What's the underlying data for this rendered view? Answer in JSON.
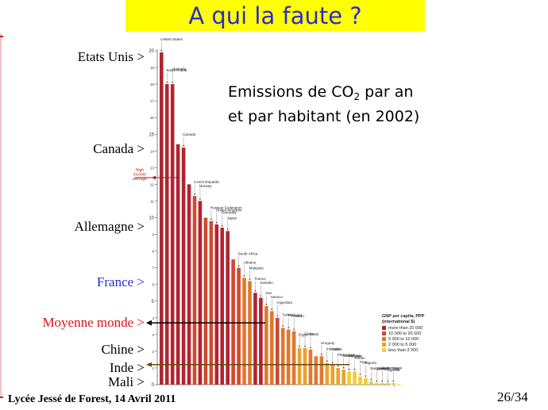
{
  "slide": {
    "title": "A qui la faute ?",
    "caption_line1_pre": "Emissions de CO",
    "caption_line1_sub": "2",
    "caption_line1_post": " par an",
    "caption_line2": "et par habitant (en 2002)",
    "footer": "Lycée Jessé de Forest, 14 Avril 2011",
    "page": "26/34"
  },
  "labels": [
    {
      "text": "Etats Unis >",
      "color": "#000000"
    },
    {
      "text": "Canada >",
      "color": "#000000"
    },
    {
      "text": "Allemagne >",
      "color": "#000000"
    },
    {
      "text": "France >",
      "color": "#2a2ad0"
    },
    {
      "text": "Moyenne monde >",
      "color": "#e01010"
    },
    {
      "text": "Chine >",
      "color": "#000000"
    },
    {
      "text": "Inde >",
      "color": "#000000"
    },
    {
      "text": "Mali >",
      "color": "#000000"
    }
  ],
  "chart_data": {
    "type": "bar",
    "title": "",
    "xlabel": "",
    "ylabel": "",
    "ylim": [
      0,
      20
    ],
    "yticks": [
      0,
      1,
      2,
      3,
      4,
      5,
      6,
      7,
      8,
      9,
      10,
      11,
      12,
      13,
      14,
      15,
      16,
      17,
      18,
      19,
      20
    ],
    "grid": false,
    "legend": {
      "title_line1": "GNP per capita, PPP",
      "title_line2": "(international $)",
      "placement": "bottom-right",
      "entries": [
        {
          "label": "more than 20 000",
          "color": "#b02530"
        },
        {
          "label": "10 000 to 20 000",
          "color": "#d04a2e"
        },
        {
          "label": "5 000 to 10 000",
          "color": "#e0782c"
        },
        {
          "label": "2 000 to 5 000",
          "color": "#eca12e"
        },
        {
          "label": "less than 2 000",
          "color": "#f4cc30"
        }
      ]
    },
    "reference_line": {
      "label_line1": "High",
      "label_line2": "income",
      "label_line3": "average",
      "value": 12.4
    },
    "categories": [
      "United States",
      "Saudi Arabia",
      "Australia",
      "",
      "Canada",
      "",
      "Czech Republic",
      "Norway",
      "",
      "Russian Federation",
      "United Kingdom",
      "Germany",
      "Japan",
      "",
      "South Africa",
      "Ukraine",
      "Malaysia",
      "France",
      "Sweden",
      "Iran",
      "Mexico",
      "Argentina",
      "Turkey",
      "Thailand",
      "Gabon",
      "Egypt",
      "China",
      "Brazil",
      "",
      "Uruguay",
      "Indonesia",
      "India",
      "Philippines",
      "Guatemala",
      "Pakistan",
      "Yemen",
      "Togo",
      "Nigeria",
      "Bangladesh",
      "Ethiopia",
      "Mozambique",
      "Uganda",
      "Mali",
      ""
    ],
    "values": [
      19.9,
      18.0,
      18.0,
      14.4,
      14.2,
      12.0,
      11.3,
      11.0,
      10.0,
      9.8,
      9.6,
      9.4,
      9.2,
      7.5,
      7.0,
      6.4,
      6.2,
      5.5,
      5.2,
      4.7,
      4.4,
      4.0,
      3.4,
      3.3,
      3.2,
      2.2,
      2.2,
      2.1,
      1.7,
      1.7,
      1.3,
      1.2,
      1.0,
      0.9,
      0.8,
      0.8,
      0.5,
      0.4,
      0.2,
      0.1,
      0.1,
      0.1,
      0.1,
      0.05
    ],
    "bar_colors": [
      "#b02530",
      "#b02530",
      "#b02530",
      "#b02530",
      "#b02530",
      "#b02530",
      "#d04a2e",
      "#b02530",
      "#d04a2e",
      "#d04a2e",
      "#b02530",
      "#b02530",
      "#b02530",
      "#d04a2e",
      "#d04a2e",
      "#e0782c",
      "#e0782c",
      "#b02530",
      "#b02530",
      "#e0782c",
      "#e0782c",
      "#d04a2e",
      "#e0782c",
      "#e0782c",
      "#e0782c",
      "#eca12e",
      "#eca12e",
      "#e0782c",
      "#e0782c",
      "#e0782c",
      "#eca12e",
      "#eca12e",
      "#eca12e",
      "#eca12e",
      "#f4cc30",
      "#f4cc30",
      "#f4cc30",
      "#f4cc30",
      "#f4cc30",
      "#f4cc30",
      "#f4cc30",
      "#f4cc30",
      "#f4cc30",
      "#f4cc30"
    ],
    "annotated_values": [
      {
        "label": "Moyenne monde",
        "value": 3.7
      },
      {
        "label": "Inde",
        "value": 1.2
      }
    ]
  }
}
